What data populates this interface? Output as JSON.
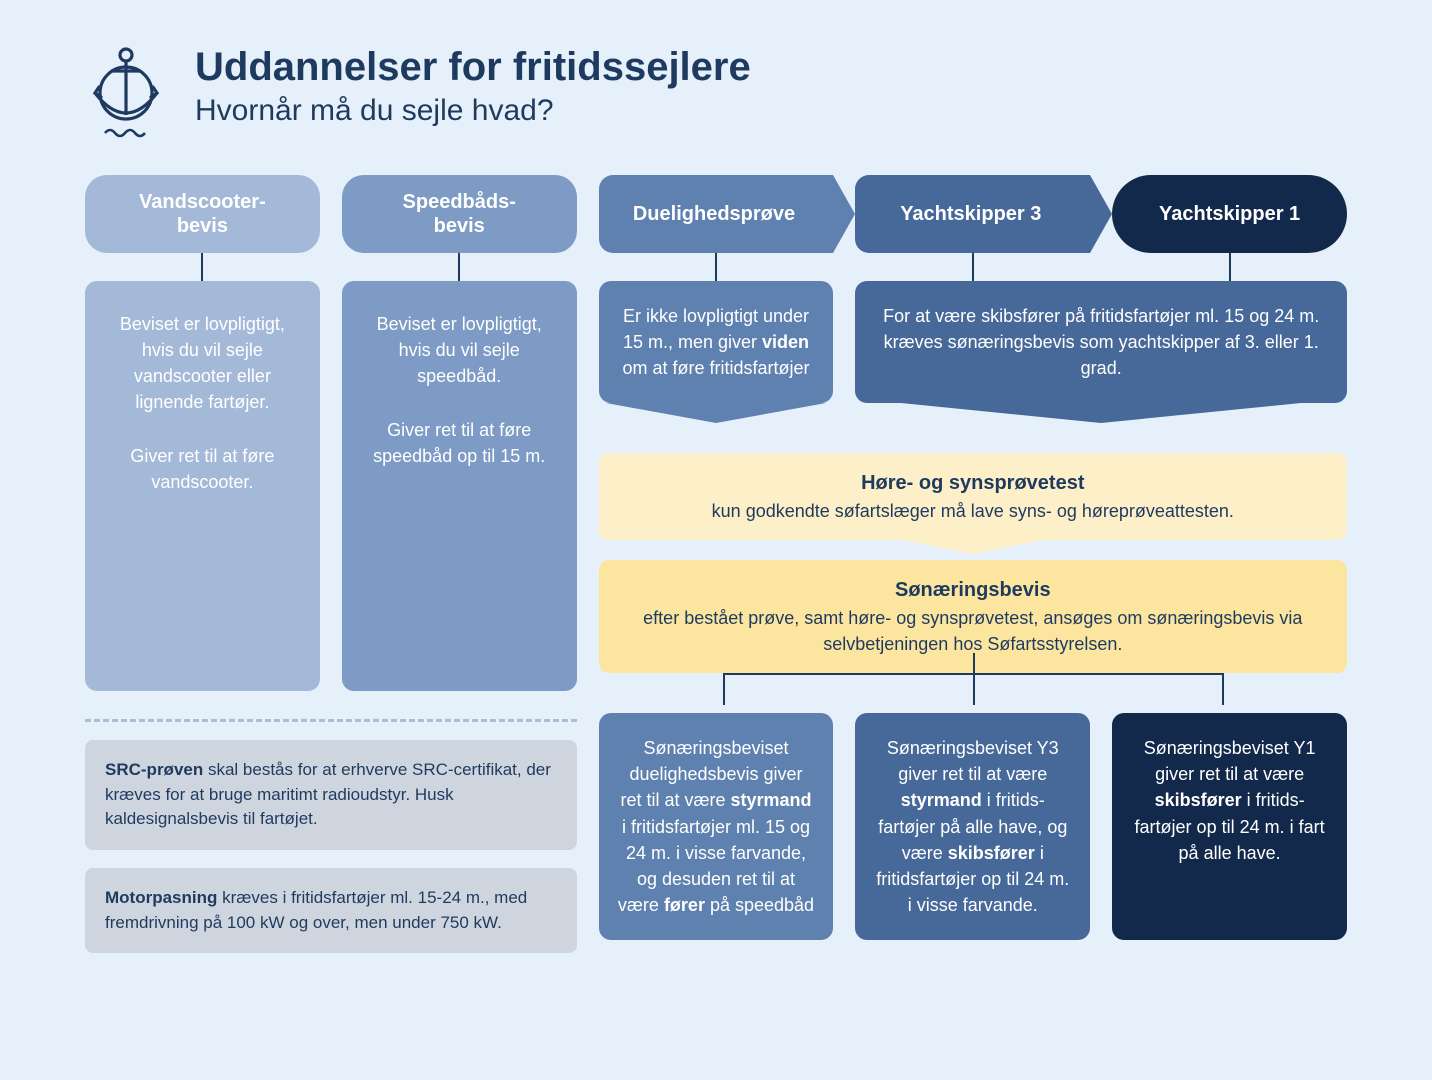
{
  "colors": {
    "bg": "#e6f0fa",
    "navy": "#1e3a5f",
    "c1": "#a4b9d8",
    "c2": "#7d9bc4",
    "c3": "#5e81b0",
    "c4": "#47699a",
    "c5": "#13294b",
    "yellow1": "#fdefc8",
    "yellow2": "#fce59f",
    "grey": "#cfd5de"
  },
  "header": {
    "title": "Uddannelser for fritidssejlere",
    "subtitle": "Hvornår må du sejle hvad?"
  },
  "badges": {
    "b1": "Vandscooter-\nbevis",
    "b2": "Speedbåds-\nbevis",
    "b3": "Duelighedsprøve",
    "b4": "Yachtskipper 3",
    "b5": "Yachtskipper 1"
  },
  "row2": {
    "c1a": "Beviset er lovpligtigt, hvis du vil sejle vandscooter eller lignende fartøjer.",
    "c1b": "Giver ret til at føre vandscooter.",
    "c2a": "Beviset er lovpligtigt, hvis du vil sejle speedbåd.",
    "c2b": "Giver ret til at føre speedbåd op til 15 m.",
    "c3_pre": "Er ikke lovpligtigt under 15 m., men giver ",
    "c3_b": "viden",
    "c3_post": " om at føre fritidsfartøjer",
    "c45": "For at være skibsfører på fritidsfartøjer ml. 15 og 24 m. kræves sønæringsbevis som yachtskipper af 3. eller 1. grad."
  },
  "hearing": {
    "title": "Høre- og synsprøvetest",
    "body": "kun godkendte søfartslæger må lave syns- og høreprøveattesten."
  },
  "sonaering": {
    "title": "Sønæringsbevis",
    "body": "efter bestået prøve, samt høre- og synsprøvetest, ansøges om sønæringsbevis via selvbetjeningen hos Søfartsstyrelsen."
  },
  "outcomes": {
    "o1_pre": "Sønæringsbeviset duelighedsbevis giver ret til at være ",
    "o1_b1": "styrmand",
    "o1_mid": " i fritidsfartøjer ml. 15 og 24 m. i visse farvande, og desuden ret til at være ",
    "o1_b2": "fører",
    "o1_post": " på speedbåd",
    "o2_pre": "Sønæringsbeviset Y3 giver ret til at være ",
    "o2_b1": "styrmand",
    "o2_mid": " i fritids-fartøjer på alle have, og være ",
    "o2_b2": "skibsfører",
    "o2_post": " i fritidsfartøjer op til 24 m. i visse farvande.",
    "o3_pre": "Sønæringsbeviset Y1 giver ret til at være ",
    "o3_b1": "skibsfører",
    "o3_post": " i fritids-fartøjer op til 24 m. i fart på alle have."
  },
  "notes": {
    "n1_b": "SRC-prøven",
    "n1": " skal bestås for at erhverve SRC-certifikat, der kræves for at bruge maritimt radioudstyr. Husk kaldesignalsbevis til fartøjet.",
    "n2_b": "Motorpasning",
    "n2": " kræves i fritidsfartøjer ml. 15-24 m., med fremdrivning på 100 kW og over, men under 750 kW."
  }
}
